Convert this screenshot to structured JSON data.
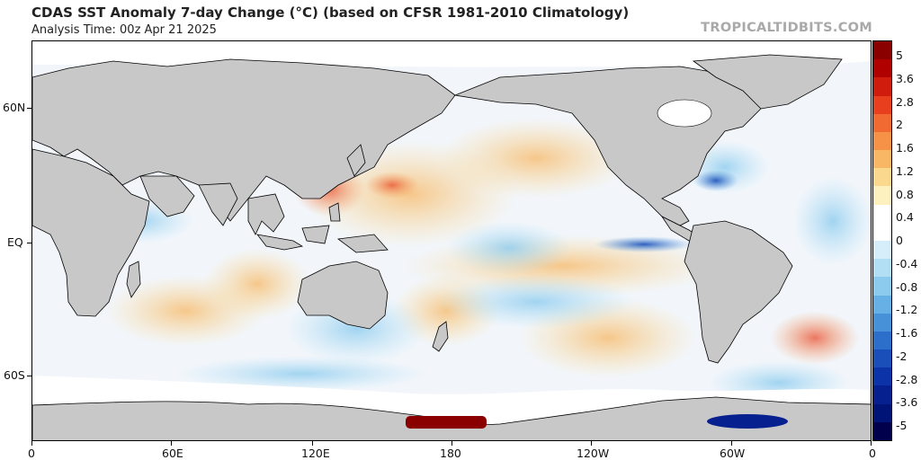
{
  "header": {
    "title": "CDAS SST Anomaly 7-day Change (°C) (based on CFSR 1981-2010 Climatology)",
    "analysis_time": "Analysis Time: 00z Apr 21 2025",
    "brand": "TROPICALTIDBITS.COM"
  },
  "axes": {
    "lat_labels": [
      "60N",
      "EQ",
      "60S"
    ],
    "lon_labels": [
      "0",
      "60E",
      "120E",
      "180",
      "120W",
      "60W",
      "0"
    ]
  },
  "colorbar": {
    "labels": [
      "5",
      "3.6",
      "2.8",
      "2",
      "1.6",
      "1.2",
      "0.8",
      "0.4",
      "0",
      "-0.4",
      "-0.8",
      "-1.2",
      "-1.6",
      "-2",
      "-2.8",
      "-3.6",
      "-5"
    ],
    "colors": [
      "#8a0000",
      "#b00000",
      "#d01c0c",
      "#e8401e",
      "#f06a32",
      "#f59248",
      "#f7b765",
      "#fad88e",
      "#fdf1c0",
      "#ffffff",
      "#ffffff",
      "#d6eef9",
      "#b2dff4",
      "#8ccbee",
      "#67b0e6",
      "#4791d9",
      "#2b6fca",
      "#1a4fba",
      "#0c33a8",
      "#062090",
      "#001478",
      "#00004c"
    ],
    "unit": "°C"
  },
  "map": {
    "land_color": "#c8c8c8",
    "ice_color": "#ffffff"
  }
}
